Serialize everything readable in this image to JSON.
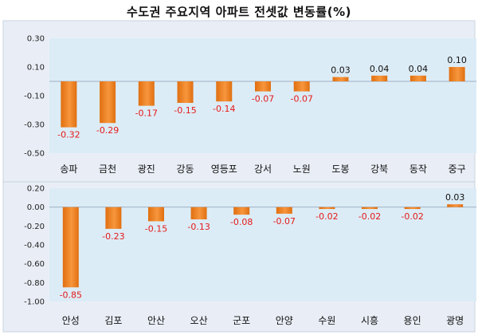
{
  "chart_title": "수도권 주요지역 아파트 전셋값 변동률(%)",
  "colors": {
    "panel_bg": "#e9eef6",
    "plot_bg": "#dcecf6",
    "bar_top": "#e06f10",
    "bar_bottom": "#f7963d",
    "neg_label": "#e41a1a",
    "pos_label": "#111111",
    "grid": "#9fb0c4"
  },
  "chart_data": [
    {
      "type": "bar",
      "title": "",
      "xlabel": "",
      "ylabel": "",
      "ylim": [
        -0.5,
        0.3
      ],
      "yticks": [
        "0.30",
        "0.10",
        "-0.10",
        "-0.30",
        "-0.50"
      ],
      "ytick_values": [
        0.3,
        0.1,
        -0.1,
        -0.3,
        -0.5
      ],
      "categories": [
        "송파",
        "금천",
        "광진",
        "강동",
        "영등포",
        "강서",
        "노원",
        "도봉",
        "강북",
        "동작",
        "중구"
      ],
      "values": [
        -0.32,
        -0.29,
        -0.17,
        -0.15,
        -0.14,
        -0.07,
        -0.07,
        0.03,
        0.04,
        0.04,
        0.1
      ],
      "value_labels": [
        "-0.32",
        "-0.29",
        "-0.17",
        "-0.15",
        "-0.14",
        "-0.07",
        "-0.07",
        "0.03",
        "0.04",
        "0.04",
        "0.10"
      ]
    },
    {
      "type": "bar",
      "title": "",
      "xlabel": "",
      "ylabel": "",
      "ylim": [
        -1.0,
        0.2
      ],
      "yticks": [
        "0.20",
        "0.00",
        "-0.20",
        "-0.40",
        "-0.60",
        "-0.80",
        "-1.00"
      ],
      "ytick_values": [
        0.2,
        0.0,
        -0.2,
        -0.4,
        -0.6,
        -0.8,
        -1.0
      ],
      "categories": [
        "안성",
        "김포",
        "안산",
        "오산",
        "군포",
        "안양",
        "수원",
        "시흥",
        "용인",
        "광명"
      ],
      "values": [
        -0.85,
        -0.23,
        -0.15,
        -0.13,
        -0.08,
        -0.07,
        -0.02,
        -0.02,
        -0.02,
        0.03
      ],
      "value_labels": [
        "-0.85",
        "-0.23",
        "-0.15",
        "-0.13",
        "-0.08",
        "-0.07",
        "-0.02",
        "-0.02",
        "-0.02",
        "0.03"
      ]
    }
  ]
}
